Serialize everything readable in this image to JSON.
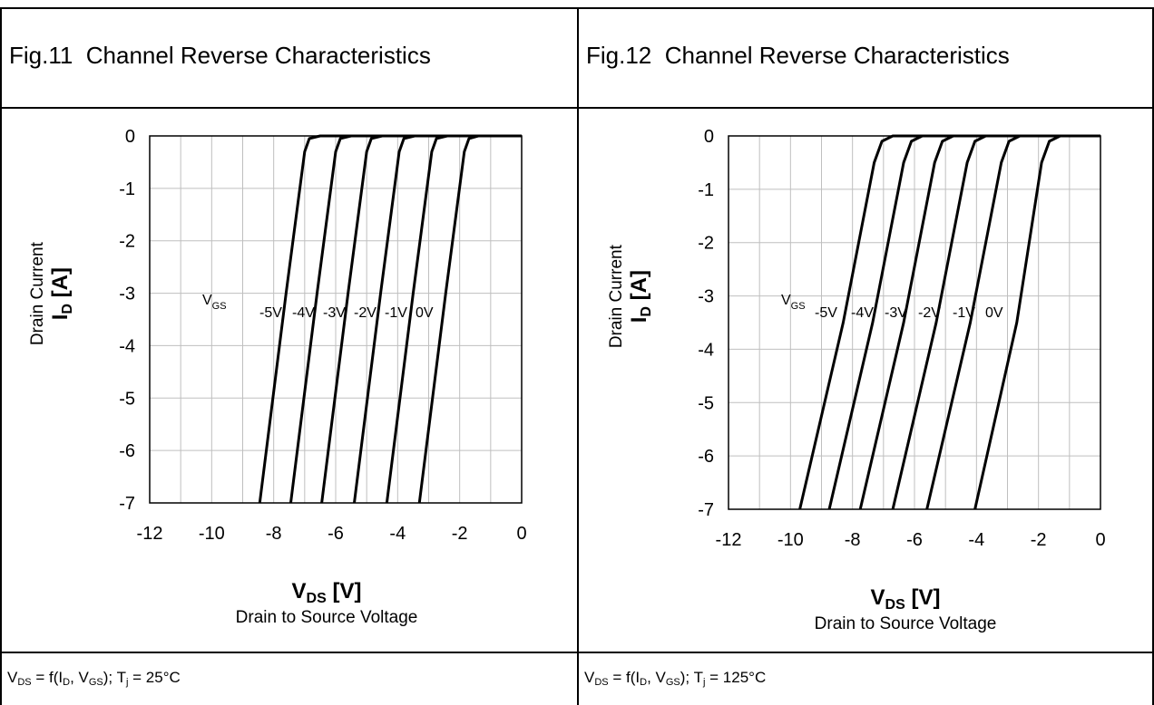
{
  "panels": [
    {
      "title": "Fig.11  Channel Reverse Characteristics",
      "footer": {
        "a": "V",
        "b": "DS",
        "c": " = f(I",
        "d": "D",
        "e": ", V",
        "f": "GS",
        "g": "); T",
        "h": "j",
        "i": " = 25°C"
      }
    },
    {
      "title": "Fig.12  Channel Reverse Characteristics",
      "footer": {
        "a": "V",
        "b": "DS",
        "c": " = f(I",
        "d": "D",
        "e": ", V",
        "f": "GS",
        "g": "); T",
        "h": "j",
        "i": " = 125°C"
      }
    }
  ],
  "colors": {
    "curve": "#000000",
    "grid": "#bfbfbf",
    "frame": "#000000"
  },
  "chart_data": [
    {
      "type": "line",
      "xlabel": {
        "main": "V",
        "sub": "DS",
        "unit": " [V]"
      },
      "xlabel2": "Drain to Source Voltage",
      "ylabel": {
        "main": "I",
        "sub": "D",
        "unit": " [A]"
      },
      "ylabel2": "Drain Current",
      "xlim": [
        -12,
        0
      ],
      "ylim": [
        -7,
        0
      ],
      "xticks": [
        -12,
        -10,
        -8,
        -6,
        -4,
        -2,
        0
      ],
      "yticks": [
        0,
        -1,
        -2,
        -3,
        -4,
        -5,
        -6,
        -7
      ],
      "legend_title": {
        "main": "V",
        "sub": "GS"
      },
      "series": [
        {
          "name": "-5V",
          "x": [
            -8.45,
            -7.6,
            -7.0,
            -6.85,
            -6.5,
            0
          ],
          "y": [
            -7,
            -3.0,
            -0.3,
            -0.05,
            0,
            0
          ]
        },
        {
          "name": "-4V",
          "x": [
            -7.45,
            -6.6,
            -6.0,
            -5.85,
            -5.5,
            0
          ],
          "y": [
            -7,
            -3.0,
            -0.3,
            -0.05,
            0,
            0
          ]
        },
        {
          "name": "-3V",
          "x": [
            -6.45,
            -5.6,
            -5.0,
            -4.85,
            -4.5,
            0
          ],
          "y": [
            -7,
            -3.0,
            -0.3,
            -0.05,
            0,
            0
          ]
        },
        {
          "name": "-2V",
          "x": [
            -5.4,
            -4.55,
            -3.95,
            -3.8,
            -3.45,
            0
          ],
          "y": [
            -7,
            -3.0,
            -0.3,
            -0.05,
            0,
            0
          ]
        },
        {
          "name": "-1V",
          "x": [
            -4.35,
            -3.5,
            -2.9,
            -2.75,
            -2.4,
            0
          ],
          "y": [
            -7,
            -3.0,
            -0.3,
            -0.05,
            0,
            0
          ]
        },
        {
          "name": "0V",
          "x": [
            -3.3,
            -2.45,
            -1.85,
            -1.7,
            -1.4,
            0
          ],
          "y": [
            -7,
            -3.0,
            -0.3,
            -0.05,
            0,
            0
          ]
        }
      ]
    },
    {
      "type": "line",
      "xlabel": {
        "main": "V",
        "sub": "DS",
        "unit": " [V]"
      },
      "xlabel2": "Drain to Source Voltage",
      "ylabel": {
        "main": "I",
        "sub": "D",
        "unit": " [A]"
      },
      "ylabel2": "Drain Current",
      "xlim": [
        -12,
        0
      ],
      "ylim": [
        -7,
        0
      ],
      "xticks": [
        -12,
        -10,
        -8,
        -6,
        -4,
        -2,
        0
      ],
      "yticks": [
        0,
        -1,
        -2,
        -3,
        -4,
        -5,
        -6,
        -7
      ],
      "legend_title": {
        "main": "V",
        "sub": "GS"
      },
      "series": [
        {
          "name": "-5V",
          "x": [
            -9.7,
            -8.3,
            -7.3,
            -7.05,
            -6.7,
            0
          ],
          "y": [
            -7,
            -3.5,
            -0.5,
            -0.1,
            0,
            0
          ]
        },
        {
          "name": "-4V",
          "x": [
            -8.75,
            -7.35,
            -6.35,
            -6.1,
            -5.75,
            0
          ],
          "y": [
            -7,
            -3.5,
            -0.5,
            -0.1,
            0,
            0
          ]
        },
        {
          "name": "-3V",
          "x": [
            -7.75,
            -6.35,
            -5.35,
            -5.1,
            -4.75,
            0
          ],
          "y": [
            -7,
            -3.5,
            -0.5,
            -0.1,
            0,
            0
          ]
        },
        {
          "name": "-2V",
          "x": [
            -6.7,
            -5.3,
            -4.3,
            -4.05,
            -3.7,
            0
          ],
          "y": [
            -7,
            -3.5,
            -0.5,
            -0.1,
            0,
            0
          ]
        },
        {
          "name": "-1V",
          "x": [
            -5.6,
            -4.2,
            -3.2,
            -2.95,
            -2.6,
            0
          ],
          "y": [
            -7,
            -3.5,
            -0.5,
            -0.1,
            0,
            0
          ]
        },
        {
          "name": "0V",
          "x": [
            -4.05,
            -2.7,
            -1.9,
            -1.65,
            -1.3,
            0
          ],
          "y": [
            -7,
            -3.5,
            -0.5,
            -0.1,
            0,
            0
          ]
        }
      ]
    }
  ]
}
